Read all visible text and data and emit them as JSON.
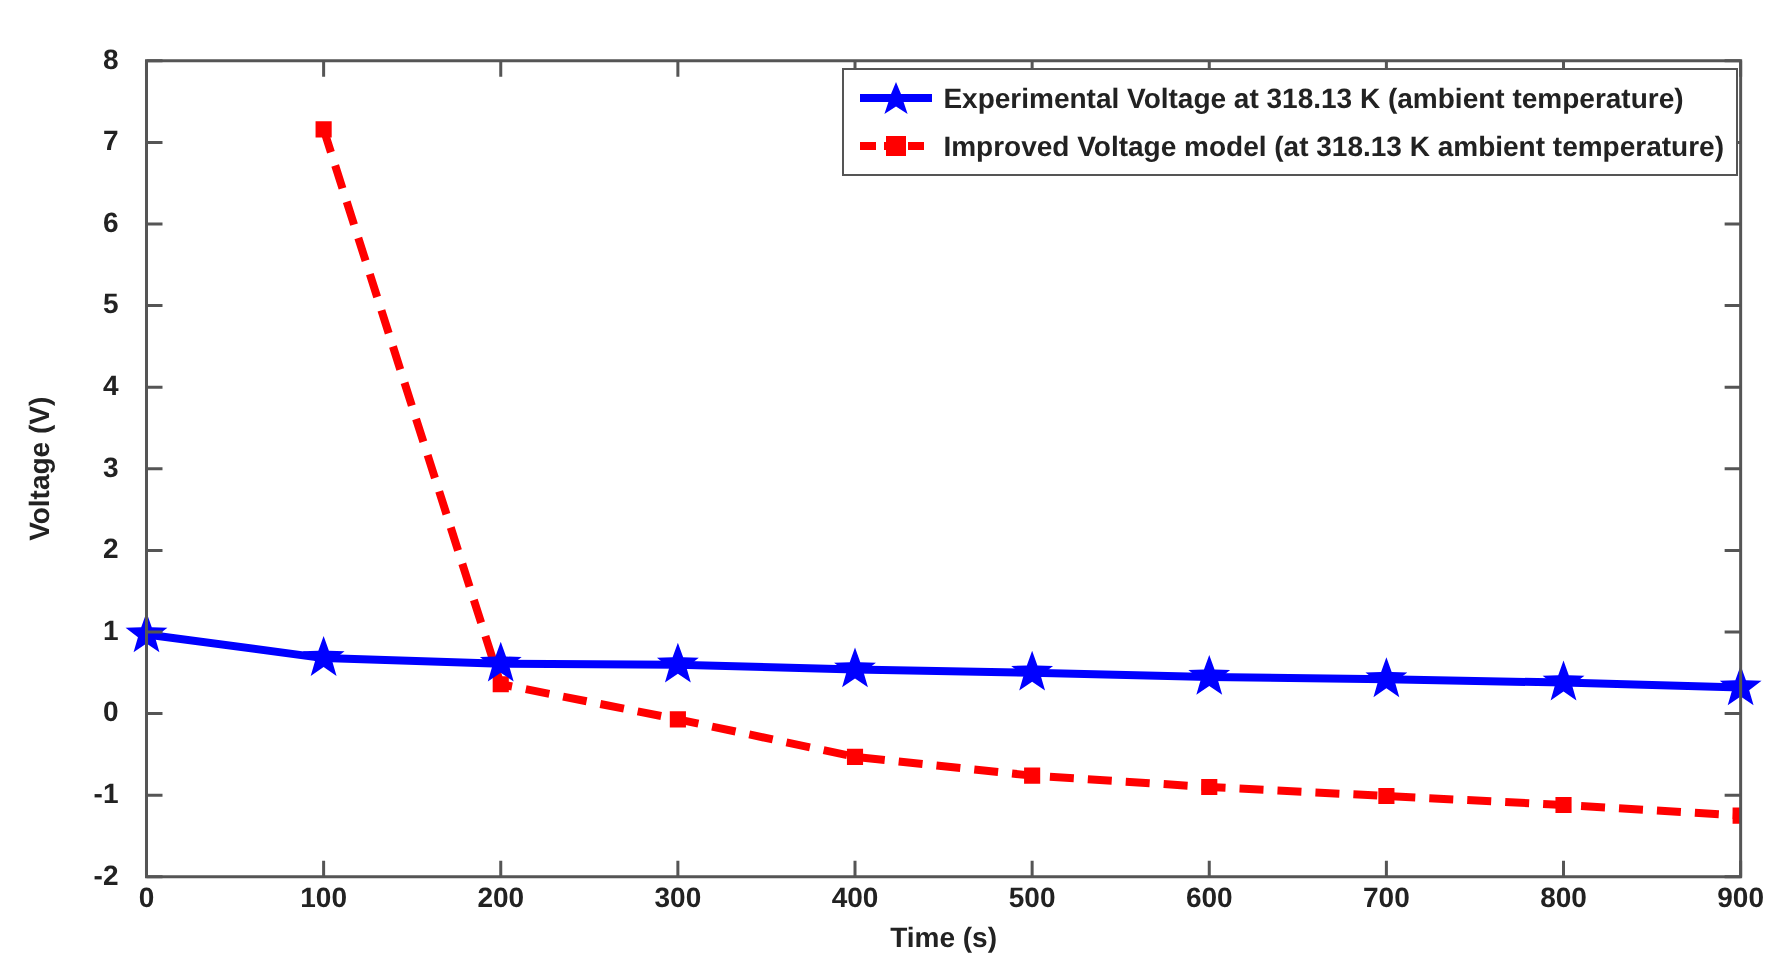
{
  "chart_data": {
    "type": "line",
    "xlabel": "Time (s)",
    "ylabel": "Voltage (V)",
    "x": [
      0,
      100,
      200,
      300,
      400,
      500,
      600,
      700,
      800,
      900
    ],
    "xlim": [
      0,
      900
    ],
    "xticks": [
      0,
      100,
      200,
      300,
      400,
      500,
      600,
      700,
      800,
      900
    ],
    "ylim": [
      -2,
      8
    ],
    "yticks": [
      -2,
      -1,
      0,
      1,
      2,
      3,
      4,
      5,
      6,
      7,
      8
    ],
    "grid": false,
    "legend": "top right",
    "series": [
      {
        "name": "Experimental Voltage at 318.13 K (ambient temperature)",
        "color": "#0000ff",
        "marker": "star",
        "line_style": "solid",
        "values": [
          0.97,
          0.68,
          0.61,
          0.6,
          0.54,
          0.5,
          0.45,
          0.42,
          0.38,
          0.32
        ]
      },
      {
        "name": "Improved Voltage model (at 318.13 K ambient temperature)",
        "color": "#ff0000",
        "marker": "square",
        "line_style": "dashed",
        "values": [
          null,
          7.16,
          0.36,
          -0.07,
          -0.53,
          -0.76,
          -0.9,
          -1.01,
          -1.12,
          -1.25
        ]
      }
    ]
  }
}
